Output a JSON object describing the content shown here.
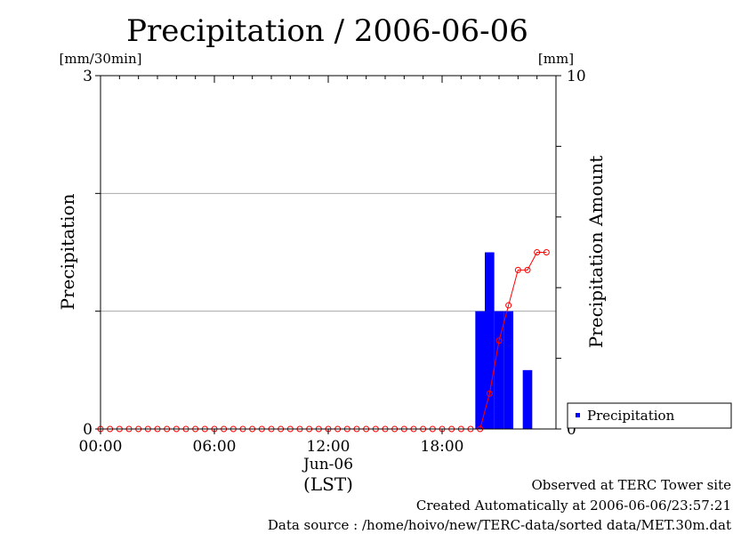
{
  "chart_data": {
    "type": "bar",
    "title": "Precipitation / 2006-06-06",
    "ylabel": "Precipitation",
    "ylabel_right": "Precipitation Amount",
    "unit_left": "[mm/30min]",
    "unit_right": "[mm]",
    "xlabel": "(LST)",
    "date_label": "Jun-06",
    "x_tick_labels": [
      "00:00",
      "06:00",
      "12:00",
      "18:00"
    ],
    "y_left_ticks": [
      "0",
      "3"
    ],
    "y_right_ticks": [
      "0",
      "10"
    ],
    "ylim_left": [
      0,
      3
    ],
    "ylim_right": [
      0,
      10
    ],
    "xlim_hours": [
      0,
      24
    ],
    "legend": {
      "label": "Precipitation",
      "placement": "right-bottom"
    },
    "grid": true,
    "series": [
      {
        "name": "Precipitation",
        "kind": "bar",
        "color": "#0000ff",
        "axis": "left",
        "x_hours": [
          20.0,
          20.5,
          21.0,
          21.5,
          22.0,
          22.5,
          23.0,
          23.5
        ],
        "values": [
          1.0,
          1.5,
          1.0,
          1.0,
          0.0,
          0.5,
          0.0,
          0.0
        ]
      },
      {
        "kind": "line",
        "color": "#ff0000",
        "axis": "right",
        "x_hours": [
          0,
          0.5,
          1,
          1.5,
          2,
          2.5,
          3,
          3.5,
          4,
          4.5,
          5,
          5.5,
          6,
          6.5,
          7,
          7.5,
          8,
          8.5,
          9,
          9.5,
          10,
          10.5,
          11,
          11.5,
          12,
          12.5,
          13,
          13.5,
          14,
          14.5,
          15,
          15.5,
          16,
          16.5,
          17,
          17.5,
          18,
          18.5,
          19,
          19.5,
          20,
          20.5,
          21,
          21.5,
          22,
          22.5,
          23,
          23.5
        ],
        "values": [
          0,
          0,
          0,
          0,
          0,
          0,
          0,
          0,
          0,
          0,
          0,
          0,
          0,
          0,
          0,
          0,
          0,
          0,
          0,
          0,
          0,
          0,
          0,
          0,
          0,
          0,
          0,
          0,
          0,
          0,
          0,
          0,
          0,
          0,
          0,
          0,
          0,
          0,
          0,
          0,
          0,
          1.0,
          2.5,
          3.5,
          4.5,
          4.5,
          5.0,
          5.0
        ]
      }
    ]
  },
  "footer": {
    "line1": "Observed at TERC Tower site",
    "line2": "Created Automatically at 2006-06-06/23:57:21",
    "line3": "Data source : /home/hoivo/new/TERC-data/sorted  data/MET.30m.dat"
  }
}
